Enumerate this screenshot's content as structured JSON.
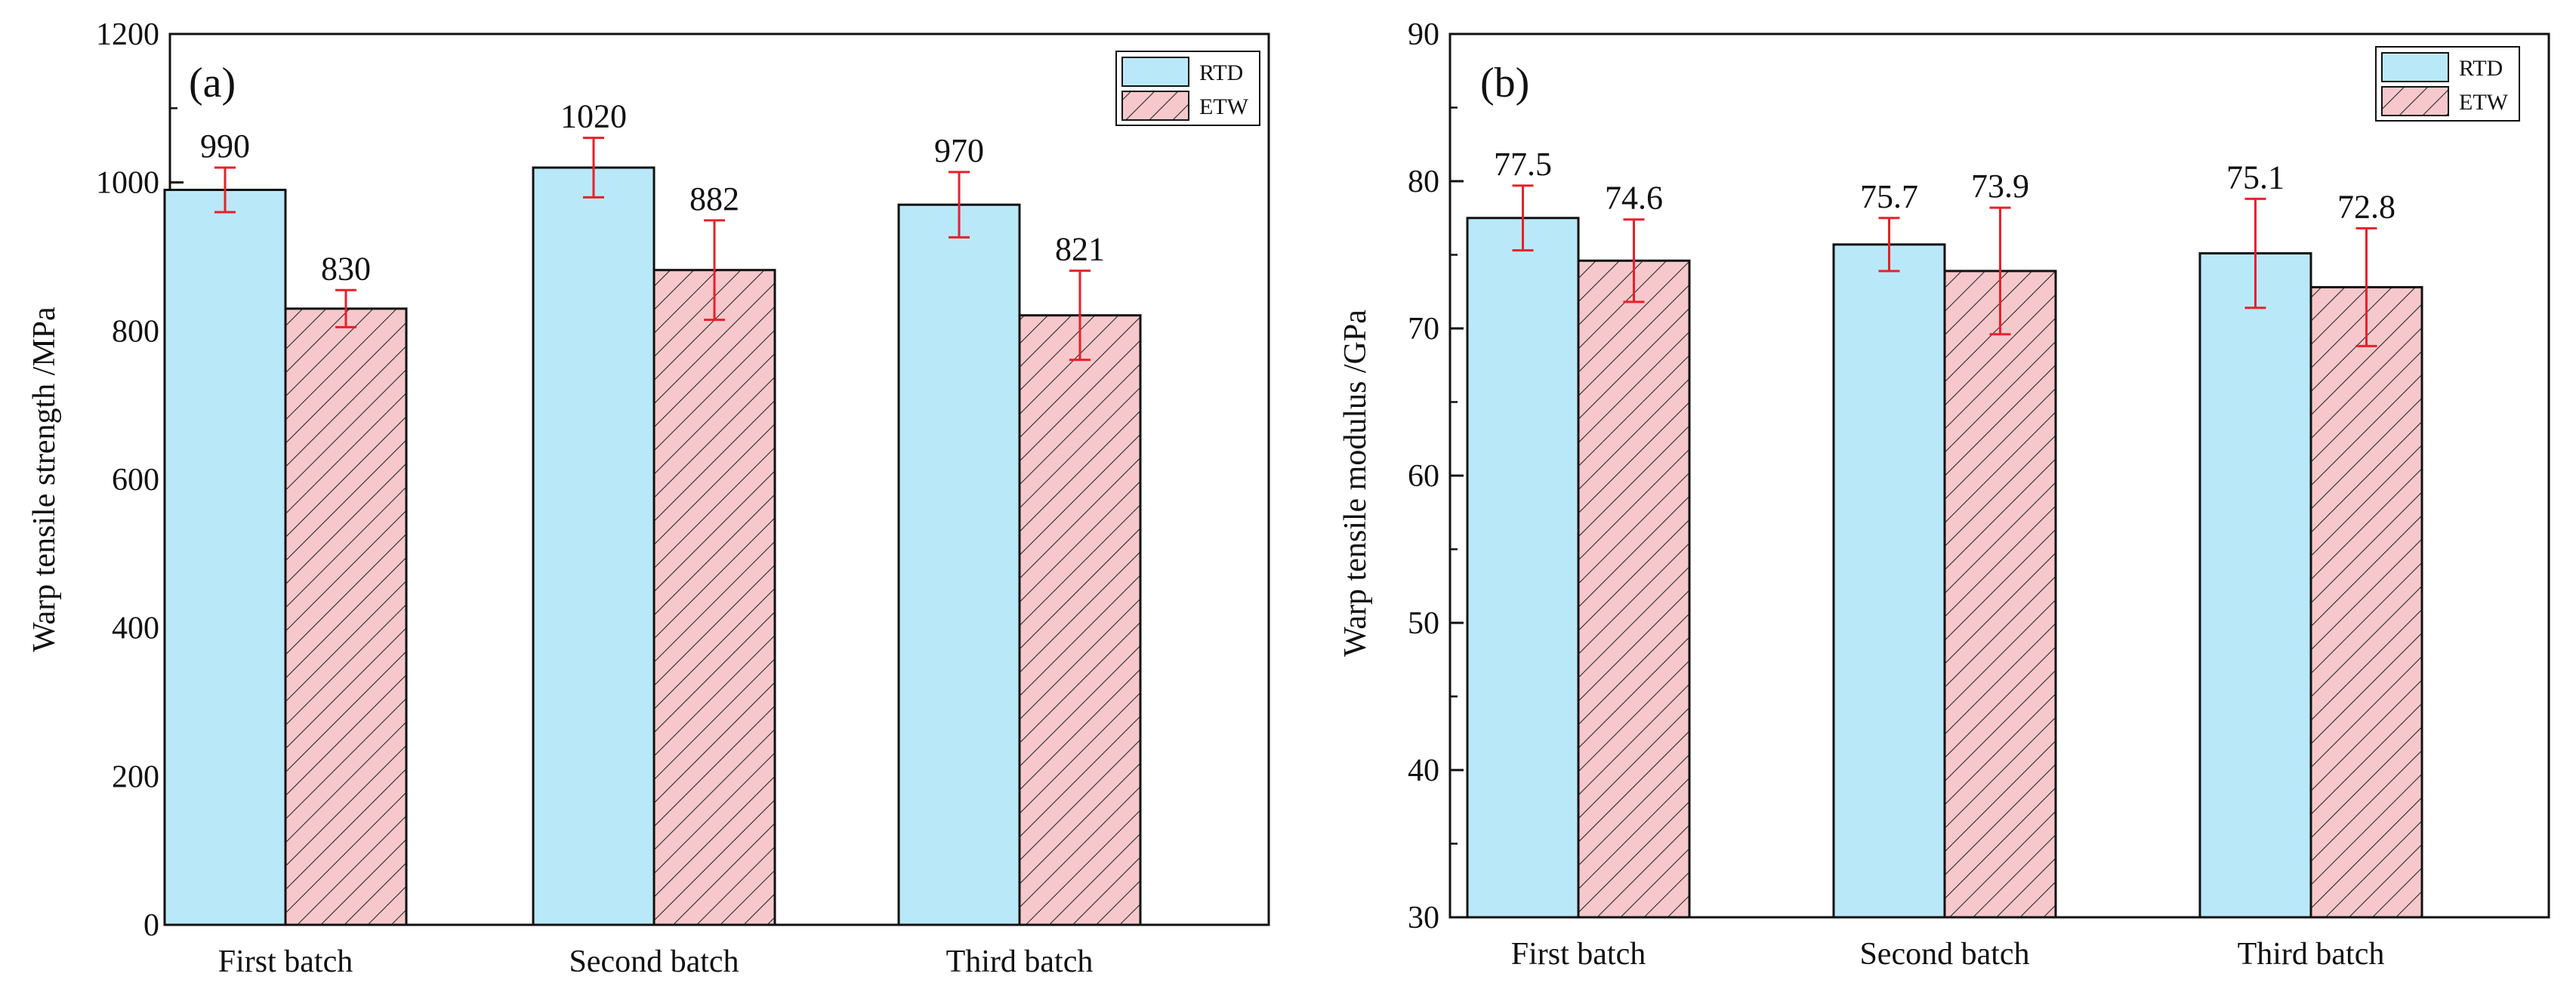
{
  "colors": {
    "rtd_fill": "#b9e9f8",
    "etw_fill": "#f6c8cb",
    "etw_hatch": "#2a2a2a",
    "error_bar": "#e8202a",
    "axis": "#111111"
  },
  "chart_data": [
    {
      "type": "bar",
      "panel_label": "(a)",
      "title": "",
      "xlabel": "",
      "ylabel": "Warp tensile strength /MPa",
      "ylim": [
        0,
        1200
      ],
      "yticks": [
        0,
        200,
        400,
        600,
        800,
        1000,
        1200
      ],
      "categories": [
        "First batch",
        "Second batch",
        "Third batch"
      ],
      "legend_position": "top-right",
      "series": [
        {
          "name": "RTD",
          "values": [
            990,
            1020,
            970
          ],
          "errors": [
            30,
            40,
            44
          ],
          "labels": [
            "990",
            "1020",
            "970"
          ]
        },
        {
          "name": "ETW",
          "values": [
            830,
            882,
            821
          ],
          "errors": [
            25,
            67,
            60
          ],
          "labels": [
            "830",
            "882",
            "821"
          ]
        }
      ]
    },
    {
      "type": "bar",
      "panel_label": "(b)",
      "title": "",
      "xlabel": "",
      "ylabel": "Warp tensile modulus /GPa",
      "ylim": [
        30,
        90
      ],
      "yticks": [
        30,
        40,
        50,
        60,
        70,
        80,
        90
      ],
      "categories": [
        "First batch",
        "Second batch",
        "Third batch"
      ],
      "legend_position": "top-right",
      "series": [
        {
          "name": "RTD",
          "values": [
            77.5,
            75.7,
            75.1
          ],
          "errors": [
            2.2,
            1.8,
            3.7
          ],
          "labels": [
            "77.5",
            "75.7",
            "75.1"
          ]
        },
        {
          "name": "ETW",
          "values": [
            74.6,
            73.9,
            72.8
          ],
          "errors": [
            2.8,
            4.3,
            4.0
          ],
          "labels": [
            "74.6",
            "73.9",
            "72.8"
          ]
        }
      ]
    }
  ]
}
